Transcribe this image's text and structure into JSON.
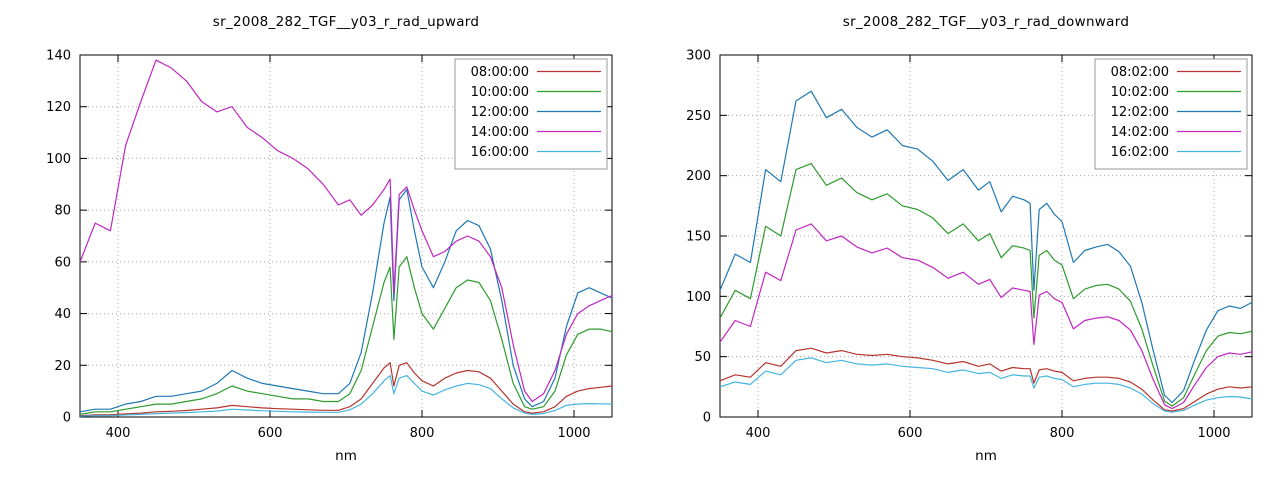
{
  "page": {
    "background": "#ffffff",
    "axis_color": "#000000",
    "grid_color": "#a8a8a8"
  },
  "chart_data": [
    {
      "type": "line",
      "title": "sr_2008_282_TGF__y03_r_rad_upward",
      "xlabel": "nm",
      "ylabel": "",
      "xlim": [
        350,
        1050
      ],
      "ylim": [
        0,
        140
      ],
      "xticks": [
        400,
        600,
        800,
        1000
      ],
      "yticks": [
        0,
        20,
        40,
        60,
        80,
        100,
        120,
        140
      ],
      "grid": true,
      "legend_position": "top-right",
      "x": [
        350,
        370,
        390,
        410,
        430,
        450,
        470,
        490,
        510,
        530,
        550,
        570,
        590,
        610,
        630,
        650,
        670,
        690,
        705,
        720,
        735,
        750,
        758,
        763,
        770,
        780,
        790,
        800,
        815,
        830,
        845,
        860,
        875,
        890,
        905,
        920,
        935,
        945,
        960,
        975,
        990,
        1005,
        1020,
        1035,
        1050
      ],
      "series": [
        {
          "name": "08:00:00",
          "color": "#b5342d",
          "values": [
            0.5,
            0.8,
            0.8,
            1.2,
            1.5,
            2,
            2.2,
            2.5,
            3,
            3.5,
            4.5,
            4,
            3.5,
            3.2,
            3,
            2.8,
            2.6,
            2.6,
            4,
            7,
            13,
            19,
            21,
            12,
            20,
            21,
            17,
            14,
            12,
            15,
            17,
            18,
            17.5,
            15,
            10,
            5,
            2,
            1.5,
            2,
            4,
            8,
            10,
            11,
            11.5,
            12
          ]
        },
        {
          "name": "10:00:00",
          "color": "#2e9b2e",
          "values": [
            1,
            2,
            2,
            3,
            4,
            5,
            5,
            6,
            7,
            9,
            12,
            10,
            9,
            8,
            7,
            7,
            6,
            6,
            9,
            18,
            35,
            52,
            58,
            30,
            58,
            62,
            50,
            40,
            34,
            42,
            50,
            53,
            52,
            45,
            30,
            13,
            4,
            3,
            4,
            10,
            24,
            32,
            34,
            34,
            33
          ]
        },
        {
          "name": "12:00:00",
          "color": "#1f78b4",
          "values": [
            2,
            3,
            3,
            5,
            6,
            8,
            8,
            9,
            10,
            13,
            18,
            15,
            13,
            12,
            11,
            10,
            9,
            9,
            13,
            25,
            48,
            75,
            85,
            45,
            84,
            88,
            72,
            58,
            50,
            60,
            72,
            76,
            74,
            65,
            45,
            20,
            7,
            4,
            6,
            15,
            35,
            48,
            50,
            48,
            46
          ]
        },
        {
          "name": "14:00:00",
          "color": "#c026c0",
          "values": [
            60,
            75,
            72,
            105,
            122,
            138,
            135,
            130,
            122,
            118,
            120,
            112,
            108,
            103,
            100,
            96,
            90,
            82,
            84,
            78,
            82,
            88,
            92,
            48,
            86,
            89,
            80,
            72,
            62,
            64,
            68,
            70,
            68,
            62,
            50,
            28,
            10,
            6,
            9,
            18,
            32,
            40,
            43,
            45,
            47
          ]
        },
        {
          "name": "16:00:00",
          "color": "#45b5e0",
          "values": [
            0.3,
            0.5,
            0.5,
            0.8,
            1,
            1.3,
            1.5,
            1.7,
            2,
            2.3,
            3,
            2.7,
            2.4,
            2.2,
            2,
            1.9,
            1.8,
            1.8,
            2.8,
            5,
            9,
            14,
            16,
            9,
            15,
            16,
            13,
            10,
            8.5,
            10.5,
            12,
            13,
            12.5,
            11,
            7,
            3.5,
            1.5,
            1,
            1.3,
            2.5,
            4.5,
            5,
            5.2,
            5.1,
            5
          ]
        }
      ]
    },
    {
      "type": "line",
      "title": "sr_2008_282_TGF__y03_r_rad_downward",
      "xlabel": "nm",
      "ylabel": "",
      "xlim": [
        350,
        1050
      ],
      "ylim": [
        0,
        300
      ],
      "xticks": [
        400,
        600,
        800,
        1000
      ],
      "yticks": [
        0,
        50,
        100,
        150,
        200,
        250,
        300
      ],
      "grid": true,
      "legend_position": "top-right",
      "x": [
        350,
        370,
        390,
        410,
        430,
        450,
        470,
        490,
        510,
        530,
        550,
        570,
        590,
        610,
        630,
        650,
        670,
        690,
        705,
        720,
        735,
        750,
        758,
        763,
        770,
        780,
        790,
        800,
        815,
        830,
        845,
        860,
        875,
        890,
        905,
        920,
        935,
        945,
        960,
        975,
        990,
        1005,
        1020,
        1035,
        1050
      ],
      "series": [
        {
          "name": "08:02:00",
          "color": "#b5342d",
          "values": [
            30,
            35,
            33,
            45,
            42,
            55,
            57,
            53,
            55,
            52,
            51,
            52,
            50,
            49,
            47,
            44,
            46,
            42,
            44,
            38,
            41,
            40,
            40,
            28,
            39,
            40,
            38,
            37,
            30,
            32,
            33,
            33,
            32,
            29,
            23,
            14,
            6,
            5,
            7,
            13,
            19,
            23,
            25,
            24,
            25
          ]
        },
        {
          "name": "10:02:00",
          "color": "#2e9b2e",
          "values": [
            82,
            105,
            98,
            158,
            150,
            205,
            210,
            192,
            198,
            186,
            180,
            185,
            175,
            172,
            165,
            152,
            160,
            146,
            152,
            132,
            142,
            140,
            138,
            82,
            134,
            138,
            130,
            126,
            98,
            106,
            109,
            110,
            106,
            96,
            73,
            42,
            13,
            9,
            16,
            36,
            55,
            67,
            70,
            69,
            71
          ]
        },
        {
          "name": "12:02:00",
          "color": "#1f78b4",
          "values": [
            105,
            135,
            128,
            205,
            195,
            262,
            270,
            248,
            255,
            240,
            232,
            238,
            225,
            222,
            212,
            196,
            205,
            188,
            195,
            170,
            183,
            180,
            177,
            105,
            172,
            177,
            168,
            162,
            128,
            138,
            141,
            143,
            137,
            125,
            95,
            55,
            18,
            12,
            22,
            48,
            72,
            88,
            92,
            90,
            95
          ]
        },
        {
          "name": "14:02:00",
          "color": "#c026c0",
          "values": [
            62,
            80,
            75,
            120,
            113,
            155,
            160,
            146,
            150,
            141,
            136,
            140,
            132,
            130,
            124,
            115,
            120,
            110,
            114,
            99,
            107,
            105,
            104,
            60,
            101,
            104,
            98,
            95,
            73,
            80,
            82,
            83,
            80,
            72,
            55,
            31,
            10,
            7,
            12,
            27,
            41,
            50,
            53,
            52,
            54
          ]
        },
        {
          "name": "16:02:00",
          "color": "#45b5e0",
          "values": [
            25,
            29,
            27,
            38,
            35,
            47,
            49,
            45,
            47,
            44,
            43,
            44,
            42,
            41,
            40,
            37,
            39,
            36,
            37,
            32,
            35,
            34,
            34,
            24,
            33,
            34,
            32,
            31,
            25,
            27,
            28,
            28,
            27,
            24,
            19,
            11,
            5,
            4,
            5.5,
            10,
            14,
            16,
            17,
            16.5,
            15
          ]
        }
      ]
    }
  ]
}
